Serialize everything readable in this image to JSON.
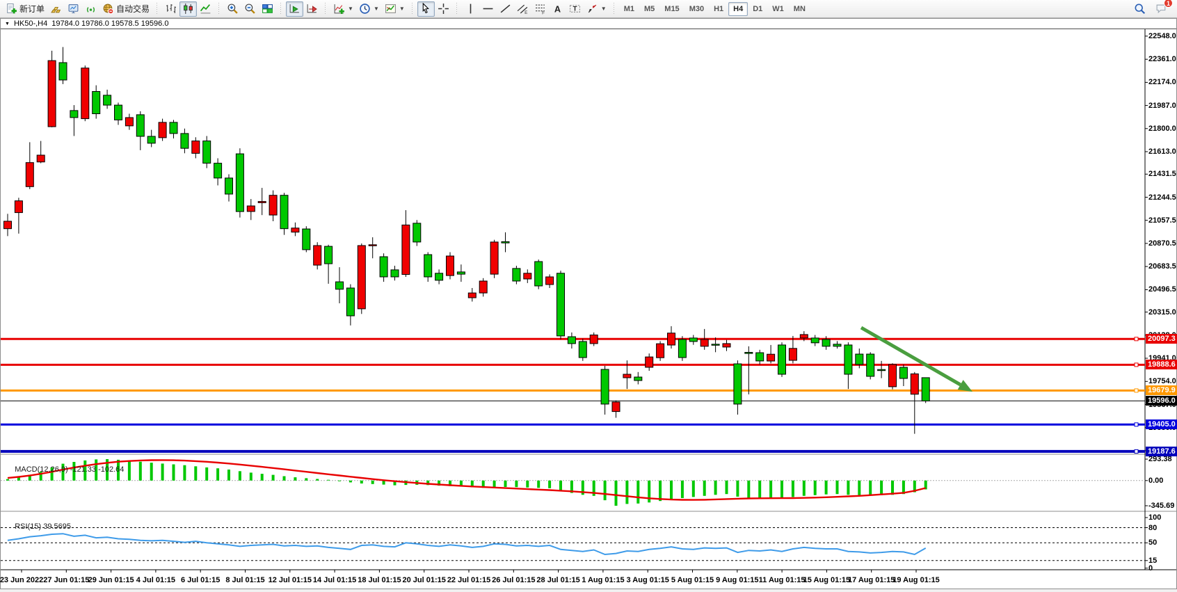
{
  "toolbar": {
    "groups": [
      {
        "items": [
          {
            "name": "new-order-button",
            "icon": "doc-plus",
            "label": "新订单"
          },
          {
            "name": "charts-gold-button",
            "icon": "gold-bars"
          },
          {
            "name": "terminal-button",
            "icon": "monitor"
          },
          {
            "name": "signals-button",
            "icon": "signal"
          },
          {
            "name": "autotrading-button",
            "icon": "globe-stop",
            "label": "自动交易"
          }
        ]
      },
      {
        "items": [
          {
            "name": "bar-chart-button",
            "icon": "bar-chart"
          },
          {
            "name": "candlestick-chart-button",
            "icon": "candle-chart",
            "pressed": true
          },
          {
            "name": "line-chart-button",
            "icon": "line-chart"
          }
        ]
      },
      {
        "items": [
          {
            "name": "zoom-in-button",
            "icon": "zoom-in"
          },
          {
            "name": "zoom-out-button",
            "icon": "zoom-out"
          },
          {
            "name": "tile-windows-button",
            "icon": "tile-windows"
          }
        ]
      },
      {
        "items": [
          {
            "name": "auto-scroll-button",
            "icon": "auto-scroll",
            "pressed": true
          },
          {
            "name": "chart-shift-button",
            "icon": "chart-shift"
          }
        ]
      },
      {
        "items": [
          {
            "name": "indicators-button",
            "icon": "indicator-add",
            "dropdown": true
          },
          {
            "name": "periods-button",
            "icon": "clock",
            "dropdown": true
          },
          {
            "name": "templates-button",
            "icon": "template",
            "dropdown": true
          }
        ]
      },
      {
        "items": [
          {
            "name": "cursor-button",
            "icon": "cursor",
            "pressed": true
          },
          {
            "name": "crosshair-button",
            "icon": "crosshair"
          }
        ]
      },
      {
        "items": [
          {
            "name": "vertical-line-button",
            "icon": "vline"
          },
          {
            "name": "horizontal-line-button",
            "icon": "hline"
          },
          {
            "name": "trendline-button",
            "icon": "trendline"
          },
          {
            "name": "equidistant-channel-button",
            "icon": "channel"
          },
          {
            "name": "fibonacci-button",
            "icon": "fibo"
          },
          {
            "name": "text-button",
            "icon": "text-a"
          },
          {
            "name": "label-button",
            "icon": "text-label"
          },
          {
            "name": "arrows-button",
            "icon": "arrows",
            "dropdown": true
          }
        ]
      }
    ],
    "timeframes": {
      "items": [
        "M1",
        "M5",
        "M15",
        "M30",
        "H1",
        "H4",
        "D1",
        "W1",
        "MN"
      ],
      "active": "H4"
    },
    "right": [
      {
        "name": "search-button",
        "icon": "search"
      },
      {
        "name": "chat-button",
        "icon": "chat",
        "badge": "1"
      }
    ]
  },
  "chart": {
    "symbol_triangle": "▼",
    "symbol": "HK50-,H4",
    "ohlc_text": "19784.0 19786.0 19578.5 19596.0",
    "macd_title": "MACD(12,26,9)",
    "macd_values": "-121.33 -102.64",
    "rsi_title": "RSI(15)",
    "rsi_value": "39.5695"
  },
  "chart_data": {
    "type": "candlestick",
    "symbol": "HK50-",
    "timeframe": "H4",
    "current_ohlc": {
      "open": 19784.0,
      "high": 19786.0,
      "low": 19578.5,
      "close": 19596.0
    },
    "bull_color": "#f00000",
    "bear_color": "#00c800",
    "price_axis_ticks": [
      22548.0,
      22361.0,
      22174.0,
      21987.0,
      21800.0,
      21613.0,
      21431.5,
      21244.5,
      21057.5,
      20870.5,
      20683.5,
      20496.5,
      20315.0,
      20128.0,
      19941.0,
      19754.0,
      19567.0,
      19380.0,
      19193.0
    ],
    "x_axis_labels": [
      "23 Jun 2022",
      "27 Jun 01:15",
      "29 Jun 01:15",
      "4 Jul 01:15",
      "6 Jul 01:15",
      "8 Jul 01:15",
      "12 Jul 01:15",
      "14 Jul 01:15",
      "18 Jul 01:15",
      "20 Jul 01:15",
      "22 Jul 01:15",
      "26 Jul 01:15",
      "28 Jul 01:15",
      "1 Aug 01:15",
      "3 Aug 01:15",
      "5 Aug 01:15",
      "9 Aug 01:15",
      "11 Aug 01:15",
      "15 Aug 01:15",
      "17 Aug 01:15",
      "19 Aug 01:15"
    ],
    "horizontal_lines": [
      {
        "name": "resistance-1",
        "price": 20097.3,
        "color": "#e80000",
        "width": 3
      },
      {
        "name": "resistance-2",
        "price": 19888.6,
        "color": "#e80000",
        "width": 3
      },
      {
        "name": "pivot-orange",
        "price": 19679.9,
        "color": "#ff9800",
        "width": 3
      },
      {
        "name": "current-price",
        "price": 19596.0,
        "color": "#000000",
        "width": 1
      },
      {
        "name": "support-1",
        "price": 19405.0,
        "color": "#0000dd",
        "width": 3
      },
      {
        "name": "support-2",
        "price": 19187.6,
        "color": "#0000bb",
        "width": 4
      }
    ],
    "trend_arrow": {
      "start_price": 20189,
      "end_price": 19682,
      "color": "#4a9e3f"
    },
    "candles": [
      [
        20990,
        21110,
        20930,
        21050
      ],
      [
        21120,
        21240,
        20950,
        21215
      ],
      [
        21330,
        21690,
        21310,
        21525
      ],
      [
        21530,
        21700,
        21520,
        21585
      ],
      [
        21815,
        22430,
        21810,
        22350
      ],
      [
        22334,
        22460,
        22160,
        22193
      ],
      [
        21946,
        21990,
        21740,
        21889
      ],
      [
        21880,
        22310,
        21860,
        22290
      ],
      [
        22100,
        22150,
        21880,
        21920
      ],
      [
        22070,
        22115,
        21960,
        21990
      ],
      [
        21990,
        22010,
        21830,
        21870
      ],
      [
        21822,
        21920,
        21790,
        21889
      ],
      [
        21912,
        21940,
        21625,
        21737
      ],
      [
        21737,
        21790,
        21650,
        21681
      ],
      [
        21726,
        21880,
        21700,
        21850
      ],
      [
        21850,
        21870,
        21720,
        21760
      ],
      [
        21760,
        21800,
        21600,
        21640
      ],
      [
        21600,
        21730,
        21560,
        21700
      ],
      [
        21700,
        21740,
        21480,
        21520
      ],
      [
        21520,
        21560,
        21340,
        21400
      ],
      [
        21400,
        21430,
        21210,
        21270
      ],
      [
        21596,
        21640,
        21080,
        21129
      ],
      [
        21129,
        21230,
        21060,
        21174
      ],
      [
        21200,
        21320,
        21100,
        21210
      ],
      [
        21100,
        21300,
        21050,
        21260
      ],
      [
        21260,
        21280,
        20940,
        20990
      ],
      [
        20962,
        21040,
        20930,
        20995
      ],
      [
        20988,
        21010,
        20800,
        20820
      ],
      [
        20695,
        20880,
        20660,
        20853
      ],
      [
        20847,
        20860,
        20544,
        20706
      ],
      [
        20560,
        20678,
        20386,
        20500
      ],
      [
        20510,
        20540,
        20207,
        20285
      ],
      [
        20341,
        20870,
        20300,
        20853
      ],
      [
        20853,
        20920,
        20750,
        20860
      ],
      [
        20763,
        20790,
        20560,
        20600
      ],
      [
        20657,
        20690,
        20570,
        20600
      ],
      [
        20620,
        21140,
        20600,
        21020
      ],
      [
        21034,
        21060,
        20850,
        20882
      ],
      [
        20780,
        20800,
        20560,
        20600
      ],
      [
        20629,
        20660,
        20540,
        20572
      ],
      [
        20611,
        20800,
        20580,
        20769
      ],
      [
        20640,
        20700,
        20560,
        20622
      ],
      [
        20431,
        20510,
        20400,
        20470
      ],
      [
        20470,
        20590,
        20440,
        20566
      ],
      [
        20622,
        20900,
        20590,
        20882
      ],
      [
        20885,
        20960,
        20800,
        20875
      ],
      [
        20668,
        20690,
        20540,
        20566
      ],
      [
        20583,
        20660,
        20550,
        20629
      ],
      [
        20724,
        20740,
        20500,
        20527
      ],
      [
        20538,
        20620,
        20510,
        20600
      ],
      [
        20629,
        20650,
        20094,
        20122
      ],
      [
        20116,
        20150,
        20020,
        20060
      ],
      [
        20077,
        20100,
        19920,
        19947
      ],
      [
        20060,
        20150,
        20040,
        20130
      ],
      [
        19851,
        19880,
        19485,
        19570
      ],
      [
        19510,
        19600,
        19460,
        19587
      ],
      [
        19784,
        19924,
        19693,
        19812
      ],
      [
        19789,
        19830,
        19730,
        19761
      ],
      [
        19868,
        19980,
        19840,
        19952
      ],
      [
        19946,
        20080,
        19920,
        20059
      ],
      [
        20048,
        20201,
        20020,
        20145
      ],
      [
        20094,
        20120,
        19920,
        19947
      ],
      [
        20105,
        20130,
        20050,
        20077
      ],
      [
        20038,
        20178,
        20010,
        20094
      ],
      [
        20055,
        20110,
        19990,
        20049
      ],
      [
        20032,
        20090,
        20000,
        20060
      ],
      [
        19896,
        19924,
        19485,
        19570
      ],
      [
        19989,
        20038,
        19649,
        19980
      ],
      [
        19986,
        20010,
        19890,
        19919
      ],
      [
        19919,
        20049,
        19900,
        19974
      ],
      [
        20049,
        20070,
        19790,
        19812
      ],
      [
        19924,
        20122,
        19900,
        20021
      ],
      [
        20105,
        20160,
        20080,
        20133
      ],
      [
        20105,
        20130,
        20040,
        20066
      ],
      [
        20094,
        20120,
        20010,
        20038
      ],
      [
        20055,
        20080,
        20020,
        20038
      ],
      [
        20049,
        20070,
        19693,
        19812
      ],
      [
        19975,
        20020,
        19860,
        19891
      ],
      [
        19975,
        19990,
        19770,
        19795
      ],
      [
        19850,
        19920,
        19780,
        19845
      ],
      [
        19711,
        19900,
        19690,
        19891
      ],
      [
        19868,
        19890,
        19716,
        19778
      ],
      [
        19650,
        19830,
        19330,
        19815
      ],
      [
        19784,
        19786,
        19578.5,
        19596
      ]
    ],
    "macd": {
      "params": "12,26,9",
      "axis_ticks": [
        293.38,
        0.0,
        -345.69
      ],
      "current_macd": -121.33,
      "current_signal": -102.64,
      "histogram": [
        20,
        45,
        80,
        120,
        180,
        230,
        255,
        275,
        290,
        293,
        285,
        270,
        258,
        245,
        232,
        222,
        210,
        195,
        180,
        168,
        150,
        128,
        108,
        92,
        78,
        60,
        45,
        32,
        22,
        10,
        -5,
        -25,
        -40,
        -48,
        -55,
        -65,
        -60,
        -58,
        -62,
        -70,
        -75,
        -80,
        -92,
        -100,
        -95,
        -88,
        -90,
        -95,
        -100,
        -105,
        -140,
        -170,
        -195,
        -210,
        -270,
        -345,
        -320,
        -315,
        -300,
        -280,
        -255,
        -240,
        -225,
        -210,
        -195,
        -185,
        -220,
        -240,
        -245,
        -240,
        -235,
        -225,
        -210,
        -200,
        -190,
        -185,
        -195,
        -200,
        -205,
        -200,
        -195,
        -185,
        -160,
        -121.33
      ],
      "signal": [
        35,
        50,
        68,
        92,
        120,
        150,
        178,
        203,
        225,
        243,
        258,
        268,
        275,
        279,
        280,
        278,
        273,
        266,
        257,
        246,
        233,
        219,
        204,
        188,
        171,
        154,
        137,
        120,
        103,
        86,
        69,
        52,
        36,
        20,
        5,
        -9,
        -22,
        -34,
        -45,
        -55,
        -64,
        -73,
        -81,
        -89,
        -96,
        -103,
        -110,
        -117,
        -124,
        -131,
        -139,
        -148,
        -158,
        -170,
        -184,
        -199,
        -215,
        -230,
        -243,
        -253,
        -260,
        -264,
        -265,
        -263,
        -259,
        -254,
        -249,
        -245,
        -243,
        -242,
        -241,
        -240,
        -238,
        -234,
        -229,
        -223,
        -217,
        -210,
        -200,
        -190,
        -180,
        -168,
        -140,
        -102.64
      ]
    },
    "rsi": {
      "period": 15,
      "axis_ticks": [
        100,
        80,
        50,
        15,
        0
      ],
      "dashed_levels": [
        80,
        50,
        15
      ],
      "current": 39.5695,
      "values": [
        55,
        58,
        62,
        64,
        67,
        68,
        63,
        65,
        60,
        61,
        58,
        57,
        55,
        54,
        55,
        53,
        51,
        53,
        50,
        48,
        46,
        43,
        45,
        46,
        47,
        44,
        45,
        43,
        44,
        41,
        39,
        37,
        45,
        46,
        43,
        42,
        50,
        48,
        45,
        43,
        46,
        44,
        41,
        43,
        48,
        47,
        44,
        45,
        43,
        45,
        37,
        35,
        33,
        36,
        27,
        29,
        34,
        33,
        37,
        39,
        42,
        38,
        37,
        40,
        39,
        40,
        31,
        35,
        34,
        36,
        33,
        38,
        41,
        39,
        38,
        38,
        33,
        32,
        30,
        31,
        33,
        32,
        27,
        39.57
      ],
      "line_color": "#3e9be9"
    }
  }
}
